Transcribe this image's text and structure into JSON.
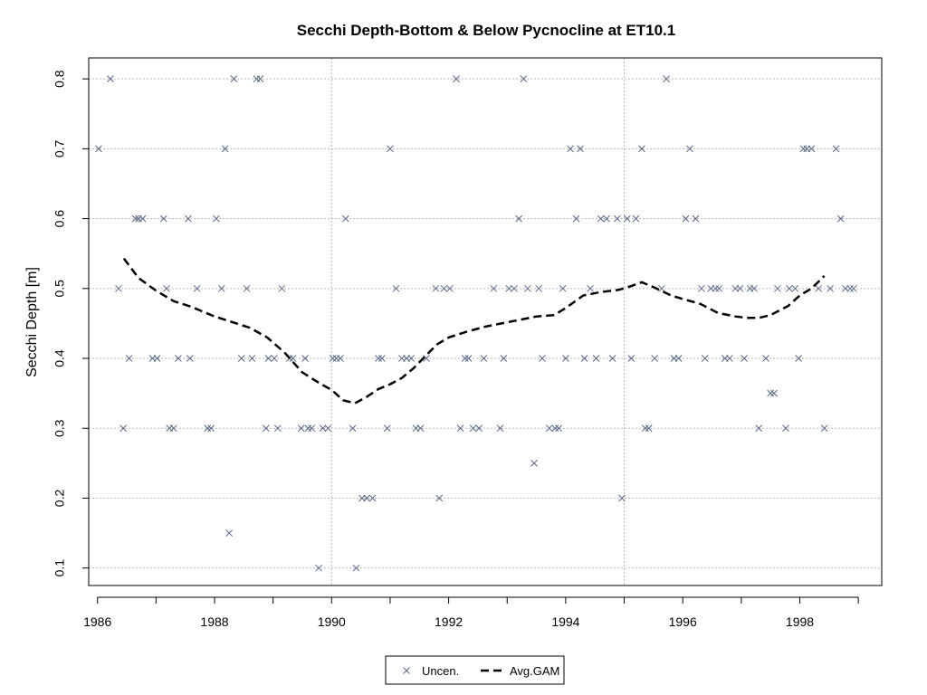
{
  "chart_data": {
    "type": "scatter",
    "title": "Secchi Depth-Bottom & Below Pycnocline at ET10.1",
    "xlabel": "",
    "ylabel": "Secchi Depth [m]",
    "xlim": [
      1985.85,
      1999.4
    ],
    "ylim": [
      0.075,
      0.83
    ],
    "x_ticks": [
      1986,
      1988,
      1990,
      1992,
      1994,
      1996,
      1998
    ],
    "y_ticks": [
      0.1,
      0.2,
      0.3,
      0.4,
      0.5,
      0.6,
      0.7,
      0.8
    ],
    "grid": true,
    "legend_position": "bottom-center",
    "series": [
      {
        "name": "Uncen.",
        "marker": "x",
        "color": "#5a6a85",
        "x": [
          1986.02,
          1986.22,
          1986.36,
          1986.44,
          1986.54,
          1986.65,
          1986.7,
          1986.77,
          1986.94,
          1987.02,
          1987.13,
          1987.18,
          1987.23,
          1987.3,
          1987.38,
          1987.55,
          1987.58,
          1987.7,
          1987.88,
          1987.94,
          1988.03,
          1988.12,
          1988.18,
          1988.25,
          1988.33,
          1988.46,
          1988.55,
          1988.64,
          1988.72,
          1988.78,
          1988.88,
          1988.92,
          1989.02,
          1989.08,
          1989.15,
          1989.28,
          1989.34,
          1989.48,
          1989.55,
          1989.6,
          1989.66,
          1989.78,
          1989.85,
          1989.94,
          1990.02,
          1990.08,
          1990.15,
          1990.24,
          1990.36,
          1990.42,
          1990.52,
          1990.6,
          1990.7,
          1990.8,
          1990.86,
          1990.95,
          1991.0,
          1991.1,
          1991.2,
          1991.28,
          1991.36,
          1991.44,
          1991.52,
          1991.62,
          1991.78,
          1991.84,
          1991.92,
          1992.02,
          1992.13,
          1992.2,
          1992.28,
          1992.34,
          1992.42,
          1992.52,
          1992.6,
          1992.77,
          1992.88,
          1992.94,
          1993.03,
          1993.12,
          1993.2,
          1993.28,
          1993.35,
          1993.46,
          1993.54,
          1993.6,
          1993.72,
          1993.82,
          1993.88,
          1993.95,
          1994.0,
          1994.08,
          1994.18,
          1994.25,
          1994.32,
          1994.42,
          1994.52,
          1994.6,
          1994.7,
          1994.8,
          1994.88,
          1994.96,
          1995.05,
          1995.12,
          1995.2,
          1995.3,
          1995.36,
          1995.42,
          1995.52,
          1995.64,
          1995.72,
          1995.85,
          1995.93,
          1996.05,
          1996.12,
          1996.22,
          1996.32,
          1996.38,
          1996.48,
          1996.56,
          1996.62,
          1996.72,
          1996.8,
          1996.9,
          1996.98,
          1997.05,
          1997.15,
          1997.22,
          1997.3,
          1997.42,
          1997.5,
          1997.56,
          1997.62,
          1997.76,
          1997.82,
          1997.92,
          1997.98,
          1998.06,
          1998.12,
          1998.2,
          1998.32,
          1998.42,
          1998.52,
          1998.62,
          1998.7,
          1998.78,
          1998.86,
          1998.92
        ],
        "y": [
          0.7,
          0.8,
          0.5,
          0.3,
          0.4,
          0.6,
          0.6,
          0.6,
          0.4,
          0.4,
          0.6,
          0.5,
          0.3,
          0.3,
          0.4,
          0.6,
          0.4,
          0.5,
          0.3,
          0.3,
          0.6,
          0.5,
          0.7,
          0.15,
          0.8,
          0.4,
          0.5,
          0.4,
          0.8,
          0.8,
          0.3,
          0.4,
          0.4,
          0.3,
          0.5,
          0.4,
          0.4,
          0.3,
          0.4,
          0.3,
          0.3,
          0.1,
          0.3,
          0.3,
          0.4,
          0.4,
          0.4,
          0.6,
          0.3,
          0.1,
          0.2,
          0.2,
          0.2,
          0.4,
          0.4,
          0.3,
          0.7,
          0.5,
          0.4,
          0.4,
          0.4,
          0.3,
          0.3,
          0.4,
          0.5,
          0.2,
          0.5,
          0.5,
          0.8,
          0.3,
          0.4,
          0.4,
          0.3,
          0.3,
          0.4,
          0.5,
          0.3,
          0.4,
          0.5,
          0.5,
          0.6,
          0.8,
          0.5,
          0.25,
          0.5,
          0.4,
          0.3,
          0.3,
          0.3,
          0.5,
          0.4,
          0.7,
          0.6,
          0.7,
          0.4,
          0.5,
          0.4,
          0.6,
          0.6,
          0.4,
          0.6,
          0.2,
          0.6,
          0.4,
          0.6,
          0.7,
          0.3,
          0.3,
          0.4,
          0.5,
          0.8,
          0.4,
          0.4,
          0.6,
          0.7,
          0.6,
          0.5,
          0.4,
          0.5,
          0.5,
          0.5,
          0.4,
          0.4,
          0.5,
          0.5,
          0.4,
          0.5,
          0.5,
          0.3,
          0.4,
          0.35,
          0.35,
          0.5,
          0.3,
          0.5,
          0.5,
          0.4,
          0.7,
          0.7,
          0.7,
          0.5,
          0.3,
          0.5,
          0.7,
          0.6,
          0.5,
          0.5,
          0.5
        ]
      },
      {
        "name": "Avg.GAM",
        "line": "dashed",
        "color": "#000000",
        "x": [
          1986.45,
          1986.7,
          1987.0,
          1987.3,
          1987.6,
          1988.0,
          1988.3,
          1988.6,
          1988.9,
          1989.2,
          1989.5,
          1989.8,
          1990.0,
          1990.2,
          1990.4,
          1990.6,
          1990.8,
          1991.0,
          1991.2,
          1991.4,
          1991.6,
          1991.8,
          1992.0,
          1992.3,
          1992.6,
          1992.9,
          1993.2,
          1993.5,
          1993.8,
          1994.0,
          1994.3,
          1994.6,
          1994.9,
          1995.1,
          1995.3,
          1995.5,
          1995.8,
          1996.0,
          1996.3,
          1996.6,
          1996.9,
          1997.1,
          1997.3,
          1997.5,
          1997.8,
          1998.0,
          1998.2,
          1998.42
        ],
        "y": [
          0.543,
          0.515,
          0.497,
          0.482,
          0.474,
          0.46,
          0.452,
          0.444,
          0.43,
          0.408,
          0.38,
          0.364,
          0.355,
          0.34,
          0.336,
          0.345,
          0.356,
          0.363,
          0.372,
          0.386,
          0.403,
          0.42,
          0.43,
          0.438,
          0.445,
          0.45,
          0.455,
          0.46,
          0.462,
          0.472,
          0.49,
          0.495,
          0.498,
          0.503,
          0.509,
          0.502,
          0.49,
          0.485,
          0.478,
          0.465,
          0.46,
          0.458,
          0.458,
          0.462,
          0.475,
          0.49,
          0.5,
          0.518
        ]
      }
    ]
  }
}
